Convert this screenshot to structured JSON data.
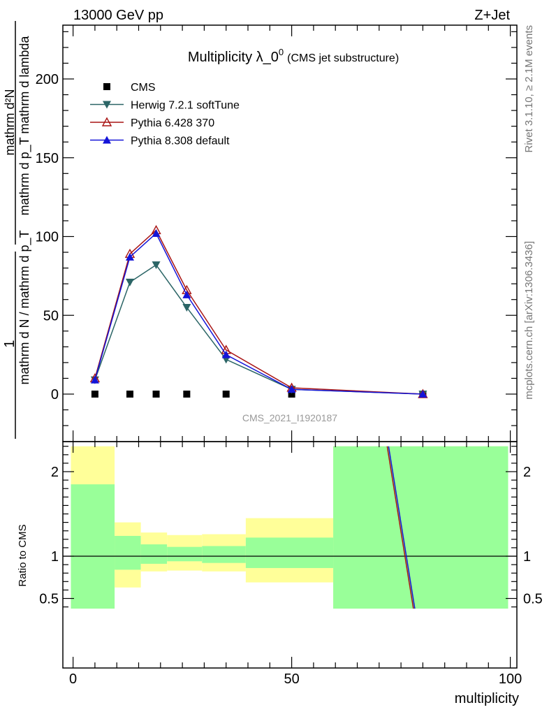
{
  "header": {
    "left": "13000 GeV pp",
    "right": "Z+Jet"
  },
  "side_text": {
    "rivet": "Rivet 3.1.10, ≥ 2.1M events",
    "mcplots": "mcplots.cern.ch [arXiv:1306.3436]"
  },
  "watermark": "CMS_2021_I1920187",
  "chart_data": [
    {
      "type": "line",
      "title": "Multiplicity λ_0",
      "title_sup": "0",
      "subtitle": "(CMS jet substructure)",
      "ylabel": {
        "num": "mathrm d²N",
        "den": "mathrm d p_T mathrm d lambda",
        "prefix_num": "1",
        "prefix_den": "mathrm d N / mathrm d p_T"
      },
      "ylim": [
        -30,
        235
      ],
      "yticks": [
        0,
        50,
        100,
        150,
        200
      ],
      "xlim": [
        -2,
        100
      ],
      "xticks": [
        0,
        50,
        100
      ],
      "legend_position": "top-left",
      "series": [
        {
          "name": "CMS",
          "marker": "square",
          "color": "#000000",
          "x": [
            5,
            13,
            19,
            26,
            35,
            50,
            80
          ],
          "y": [
            0,
            0,
            0,
            0,
            0,
            0,
            0
          ],
          "connect": false
        },
        {
          "name": "Herwig 7.2.1 softTune",
          "marker": "triangle-down",
          "color": "#2b6566",
          "x": [
            5,
            13,
            19,
            26,
            35,
            50,
            80
          ],
          "y": [
            9,
            71,
            82,
            55,
            22,
            3,
            0
          ],
          "connect": true
        },
        {
          "name": "Pythia 6.428 370",
          "marker": "triangle-up-open",
          "color": "#a81414",
          "x": [
            5,
            13,
            19,
            26,
            35,
            50,
            80
          ],
          "y": [
            10,
            89,
            104,
            66,
            28,
            4,
            0
          ],
          "connect": true
        },
        {
          "name": "Pythia 8.308 default",
          "marker": "triangle-up",
          "color": "#1414d8",
          "x": [
            5,
            13,
            19,
            26,
            35,
            50,
            80
          ],
          "y": [
            9,
            87,
            102,
            63,
            25,
            3,
            0
          ],
          "connect": true
        }
      ]
    },
    {
      "type": "line",
      "ylabel": "Ratio to CMS",
      "xlabel": "multiplicity",
      "ylim": [
        0.38,
        2.3
      ],
      "yticks": [
        0.5,
        1,
        2
      ],
      "ytick_labels": [
        "0.5",
        "1",
        "2"
      ],
      "xlim": [
        -2,
        100
      ],
      "xticks": [
        0,
        50,
        100
      ],
      "bands": [
        {
          "x0": -0.5,
          "x1": 9.5,
          "yellow": [
            0.38,
            2.3
          ],
          "green": [
            0.38,
            1.85
          ]
        },
        {
          "x0": 9.5,
          "x1": 15.5,
          "yellow": [
            0.63,
            1.4
          ],
          "green": [
            0.84,
            1.24
          ]
        },
        {
          "x0": 15.5,
          "x1": 21.5,
          "yellow": [
            0.82,
            1.28
          ],
          "green": [
            0.91,
            1.14
          ]
        },
        {
          "x0": 21.5,
          "x1": 29.5,
          "yellow": [
            0.83,
            1.25
          ],
          "green": [
            0.94,
            1.11
          ]
        },
        {
          "x0": 29.5,
          "x1": 39.5,
          "yellow": [
            0.82,
            1.26
          ],
          "green": [
            0.92,
            1.12
          ]
        },
        {
          "x0": 39.5,
          "x1": 59.5,
          "yellow": [
            0.69,
            1.45
          ],
          "green": [
            0.86,
            1.22
          ]
        },
        {
          "x0": 59.5,
          "x1": 99.5,
          "yellow": [
            0.38,
            2.3
          ],
          "green": [
            0.38,
            2.3
          ]
        }
      ],
      "ratio_lines": [
        {
          "name": "Pythia 6.428 370",
          "color": "#a81414",
          "x": [
            72,
            78
          ],
          "y": [
            2.3,
            0.38
          ]
        },
        {
          "name": "Pythia 8.308 default",
          "color": "#1414d8",
          "x": [
            72,
            78
          ],
          "y": [
            2.3,
            0.38
          ]
        }
      ]
    }
  ],
  "colors": {
    "band_yellow": "#ffff99",
    "band_green": "#99ff99"
  }
}
